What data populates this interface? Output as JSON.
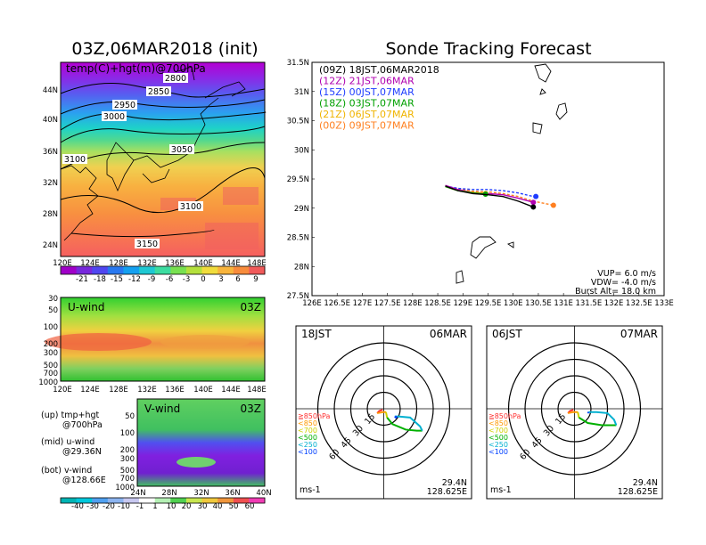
{
  "left_panel": {
    "title": "03Z,06MAR2018 (init)",
    "map_label": "temp(C)+hgt(m)@700hPa",
    "contour_labels": [
      "2800",
      "2850",
      "2950",
      "3000",
      "3050",
      "3100",
      "3100",
      "3150"
    ],
    "lat_ticks": [
      "44N",
      "40N",
      "36N",
      "32N",
      "28N",
      "24N"
    ],
    "lon_ticks": [
      "120E",
      "124E",
      "128E",
      "132E",
      "136E",
      "140E",
      "144E",
      "148E"
    ],
    "temp_colorbar": [
      "-21",
      "-18",
      "-15",
      "-12",
      "-9",
      "-6",
      "-3",
      "0",
      "3",
      "6",
      "9"
    ],
    "uwind_label": "U-wind",
    "uwind_time": "03Z",
    "uwind_p_ticks": [
      "30",
      "50",
      "100",
      "200",
      "300",
      "500",
      "700",
      "1000"
    ],
    "uwind_lon_ticks": [
      "120E",
      "124E",
      "128E",
      "132E",
      "136E",
      "140E",
      "144E",
      "148E"
    ],
    "vwind_label": "V-wind",
    "vwind_time": "03Z",
    "vwind_p_ticks": [
      "50",
      "100",
      "200",
      "300",
      "500",
      "700",
      "1000"
    ],
    "vwind_lat_ticks": [
      "24N",
      "28N",
      "32N",
      "36N",
      "40N"
    ],
    "wind_colorbar": [
      "-40",
      "-30",
      "-20",
      "-10",
      "-1",
      "1",
      "10",
      "20",
      "30",
      "40",
      "50",
      "60"
    ],
    "notes": [
      {
        "line1": "(up) tmp+hgt",
        "line2": "@700hPa"
      },
      {
        "line1": "(mid) u-wind",
        "line2": "@29.36N"
      },
      {
        "line1": "(bot) v-wind",
        "line2": "@128.66E"
      }
    ]
  },
  "right_panel": {
    "title": "Sonde Tracking Forecast",
    "legend": [
      {
        "text": "(09Z)  18JST,06MAR2018",
        "color": "#000000"
      },
      {
        "text": "(12Z)  21JST,06MAR",
        "color": "#b000b0"
      },
      {
        "text": "(15Z)  00JST,07MAR",
        "color": "#1e3cff"
      },
      {
        "text": "(18Z)  03JST,07MAR",
        "color": "#00a000"
      },
      {
        "text": "(21Z)  06JST,07MAR",
        "color": "#f0b400"
      },
      {
        "text": "(00Z)  09JST,07MAR",
        "color": "#ff8020"
      }
    ],
    "info": [
      "VUP= 6.0 m/s",
      "VDW= -4.0 m/s",
      "Burst Alt= 18.0 km"
    ]
  },
  "chart_data": [
    {
      "type": "line",
      "title": "Sonde Tracking Forecast",
      "xlim": [
        126,
        133
      ],
      "ylim": [
        27.5,
        31.5
      ],
      "x_ticks": [
        "126E",
        "126.5E",
        "127E",
        "127.5E",
        "128E",
        "128.5E",
        "129E",
        "129.5E",
        "130E",
        "130.5E",
        "131E",
        "131.5E",
        "132E",
        "132.5E",
        "133E"
      ],
      "y_ticks": [
        "27.5N",
        "28N",
        "28.5N",
        "29N",
        "29.5N",
        "30N",
        "30.5N",
        "31N",
        "31.5N"
      ],
      "series": [
        {
          "name": "(09Z)  18JST,06MAR2018",
          "color": "#000000",
          "x": [
            128.65,
            128.9,
            129.2,
            129.5,
            129.8,
            130.1,
            130.4
          ],
          "y": [
            29.38,
            29.3,
            29.25,
            29.23,
            29.2,
            29.12,
            29.02
          ],
          "end": [
            130.4,
            29.02
          ]
        },
        {
          "name": "(12Z)  21JST,06MAR",
          "color": "#b000b0",
          "x": [
            128.65,
            128.9,
            129.2,
            129.5,
            129.8,
            130.1,
            130.4
          ],
          "y": [
            29.39,
            29.32,
            29.27,
            29.25,
            29.23,
            29.17,
            29.1
          ],
          "end": [
            130.4,
            29.1
          ]
        },
        {
          "name": "(15Z)  00JST,07MAR",
          "color": "#1e3cff",
          "x": [
            128.65,
            128.9,
            129.2,
            129.5,
            129.8,
            130.1,
            130.4
          ],
          "y": [
            29.38,
            29.34,
            29.32,
            29.32,
            29.3,
            29.26,
            29.2
          ],
          "end": [
            130.45,
            29.2
          ]
        },
        {
          "name": "(18Z)  03JST,07MAR",
          "color": "#00a000",
          "x": [
            128.65,
            128.9,
            129.2,
            129.5
          ],
          "y": [
            29.37,
            29.3,
            29.26,
            29.24
          ],
          "end": [
            129.45,
            29.24
          ]
        },
        {
          "name": "(21Z)  06JST,07MAR",
          "color": "#f0b400",
          "x": [
            128.65,
            128.9,
            129.2,
            129.5
          ],
          "y": [
            29.37,
            29.3,
            29.27,
            29.25
          ],
          "end": [
            129.45,
            29.25
          ]
        },
        {
          "name": "(00Z)  09JST,07MAR",
          "color": "#ff8020",
          "x": [
            128.65,
            128.9,
            129.2,
            129.5,
            129.8,
            130.1,
            130.4,
            130.8
          ],
          "y": [
            29.38,
            29.33,
            29.29,
            29.28,
            29.25,
            29.2,
            29.12,
            29.05
          ],
          "end": [
            130.8,
            29.05
          ]
        }
      ]
    },
    {
      "type": "hodograph",
      "time_left": "18JST",
      "date_right": "06MAR",
      "rings": [
        "15",
        "30",
        "45",
        "60"
      ],
      "unit": "ms-1",
      "lat": "29.4N",
      "lon": "128.625E",
      "pressure_legend": [
        {
          "text": "≧850hPa",
          "color": "#ff3030"
        },
        {
          "text": "<850",
          "color": "#ff9900"
        },
        {
          "text": "<700",
          "color": "#d0d000"
        },
        {
          "text": "<500",
          "color": "#00b000"
        },
        {
          "text": "<250",
          "color": "#00b0d0"
        },
        {
          "text": "<100",
          "color": "#0040ff"
        }
      ],
      "segments": [
        {
          "color": "#ff3030",
          "u": [
            -1,
            -4,
            -6
          ],
          "v": [
            -1,
            -2,
            -4
          ]
        },
        {
          "color": "#ff9900",
          "u": [
            -6,
            0,
            2
          ],
          "v": [
            -4,
            -3,
            -3
          ]
        },
        {
          "color": "#d0d000",
          "u": [
            2,
            3
          ],
          "v": [
            -3,
            -8
          ]
        },
        {
          "color": "#00b000",
          "u": [
            3,
            8,
            20,
            30,
            35
          ],
          "v": [
            -8,
            -14,
            -19,
            -20,
            -20
          ]
        },
        {
          "color": "#00b0d0",
          "u": [
            35,
            33,
            24,
            13,
            10
          ],
          "v": [
            -20,
            -16,
            -8,
            -7,
            -7
          ]
        },
        {
          "color": "#0040ff",
          "u": [
            10,
            11,
            12
          ],
          "v": [
            -7,
            -8,
            -7
          ]
        }
      ]
    },
    {
      "type": "hodograph",
      "time_left": "06JST",
      "date_right": "07MAR",
      "rings": [
        "15",
        "30",
        "45",
        "60"
      ],
      "unit": "ms-1",
      "lat": "29.4N",
      "lon": "128.625E",
      "pressure_legend": [
        {
          "text": "≧850hPa",
          "color": "#ff3030"
        },
        {
          "text": "<850",
          "color": "#ff9900"
        },
        {
          "text": "<700",
          "color": "#d0d000"
        },
        {
          "text": "<500",
          "color": "#00b000"
        },
        {
          "text": "<250",
          "color": "#00b0d0"
        },
        {
          "text": "<100",
          "color": "#0040ff"
        }
      ],
      "segments": [
        {
          "color": "#ff3030",
          "u": [
            -1,
            -4,
            -6
          ],
          "v": [
            -1,
            -2,
            -4
          ]
        },
        {
          "color": "#ff9900",
          "u": [
            -6,
            -1,
            3
          ],
          "v": [
            -4,
            -3,
            -3
          ]
        },
        {
          "color": "#d0d000",
          "u": [
            3,
            4
          ],
          "v": [
            -3,
            -8
          ]
        },
        {
          "color": "#00b000",
          "u": [
            4,
            12,
            25,
            35,
            38
          ],
          "v": [
            -8,
            -13,
            -15,
            -15,
            -15
          ]
        },
        {
          "color": "#00b0d0",
          "u": [
            38,
            36,
            30,
            20,
            13
          ],
          "v": [
            -15,
            -10,
            -4,
            -3,
            -3
          ]
        },
        {
          "color": "#0040ff",
          "u": [
            13,
            12
          ],
          "v": [
            -3,
            -4
          ]
        }
      ]
    }
  ]
}
